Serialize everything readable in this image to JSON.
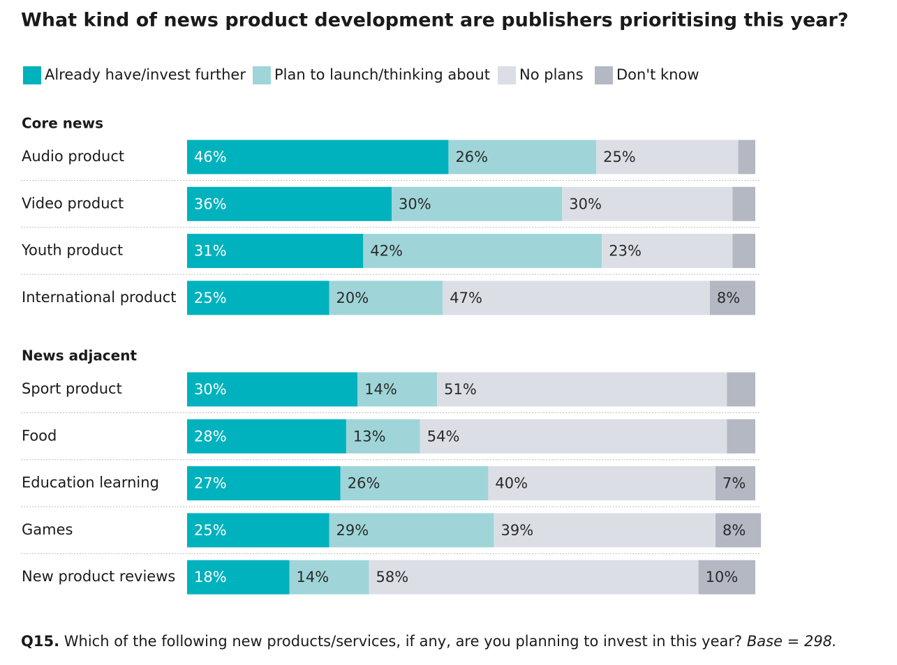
{
  "title": "What kind of news product development are publishers prioritising this year?",
  "chart_data": [
    {
      "type": "bar",
      "orientation": "horizontal",
      "stacked": true,
      "subtitle": "Core news",
      "categories": [
        "Audio product",
        "Video product",
        "Youth product",
        "International product"
      ],
      "xlim": [
        0,
        100
      ],
      "series": [
        {
          "name": "Already have/invest further",
          "color": "#00b2bd",
          "values": [
            46,
            36,
            31,
            25
          ],
          "value_labels": [
            "46%",
            "36%",
            "31%",
            "25%"
          ]
        },
        {
          "name": "Plan to launch/thinking about",
          "color": "#9fd5d8",
          "values": [
            26,
            30,
            42,
            20
          ],
          "value_labels": [
            "26%",
            "30%",
            "42%",
            "20%"
          ]
        },
        {
          "name": "No plans",
          "color": "#dcdee6",
          "values": [
            25,
            30,
            23,
            47
          ],
          "value_labels": [
            "25%",
            "30%",
            "23%",
            "47%"
          ]
        },
        {
          "name": "Don't know",
          "color": "#b4b8c3",
          "values": [
            3,
            4,
            4,
            8
          ],
          "value_labels": [
            null,
            null,
            null,
            "8%"
          ]
        }
      ]
    },
    {
      "type": "bar",
      "orientation": "horizontal",
      "stacked": true,
      "subtitle": "News adjacent",
      "categories": [
        "Sport product",
        "Food",
        "Education learning",
        "Games",
        "New product reviews"
      ],
      "xlim": [
        0,
        100
      ],
      "series": [
        {
          "name": "Already have/invest further",
          "color": "#00b2bd",
          "values": [
            30,
            28,
            27,
            25,
            18
          ],
          "value_labels": [
            "30%",
            "28%",
            "27%",
            "25%",
            "18%"
          ]
        },
        {
          "name": "Plan to launch/thinking about",
          "color": "#9fd5d8",
          "values": [
            14,
            13,
            26,
            29,
            14
          ],
          "value_labels": [
            "14%",
            "13%",
            "26%",
            "29%",
            "14%"
          ]
        },
        {
          "name": "No plans",
          "color": "#dcdee6",
          "values": [
            51,
            54,
            40,
            39,
            58
          ],
          "value_labels": [
            "51%",
            "54%",
            "40%",
            "39%",
            "58%"
          ]
        },
        {
          "name": "Don't know",
          "color": "#b4b8c3",
          "values": [
            5,
            5,
            7,
            8,
            10
          ],
          "value_labels": [
            null,
            null,
            "7%",
            "8%",
            "10%"
          ]
        }
      ]
    }
  ],
  "note": {
    "label": "Q15.",
    "text": "Which of the following new products/services, if any, are you planning to invest in this year?",
    "base": "Base = 298."
  }
}
